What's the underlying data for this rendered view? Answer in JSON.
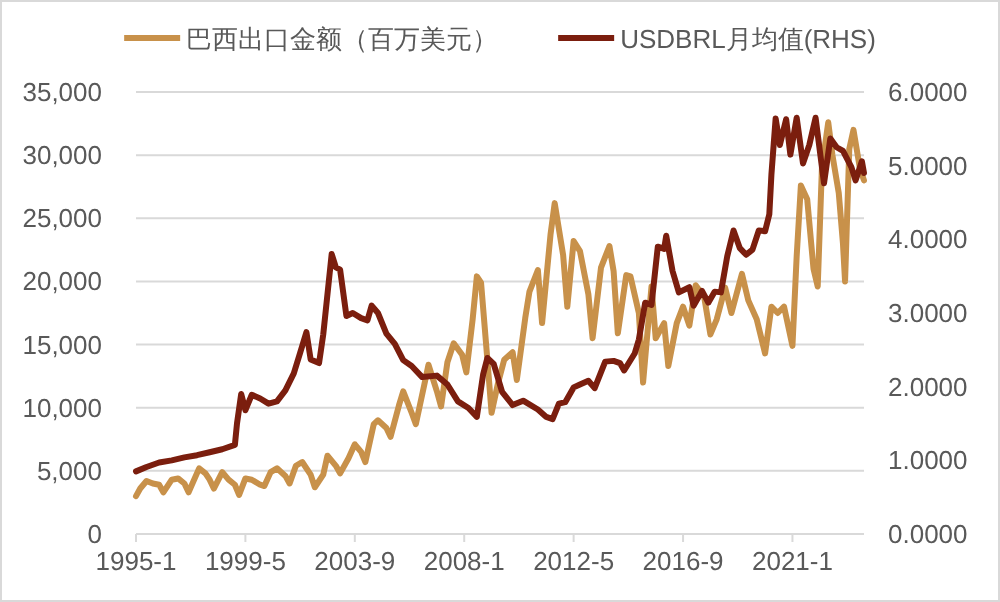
{
  "chart_data": {
    "type": "line",
    "legend": "top",
    "grid": "y",
    "marker": "none",
    "line_style": "solid",
    "xlim": [
      "1995-01",
      "2023-11"
    ],
    "xticks": [
      {
        "value": "1995-01",
        "label": "1995-1"
      },
      {
        "value": "1999-05",
        "label": "1999-5"
      },
      {
        "value": "2003-09",
        "label": "2003-9"
      },
      {
        "value": "2008-01",
        "label": "2008-1"
      },
      {
        "value": "2012-05",
        "label": "2012-5"
      },
      {
        "value": "2016-09",
        "label": "2016-9"
      },
      {
        "value": "2021-01",
        "label": "2021-1"
      }
    ],
    "ylim": [
      0,
      35000
    ],
    "yticks": [
      0,
      {
        "value": 5000,
        "label": "5,000"
      },
      {
        "value": 10000,
        "label": "10,000"
      },
      {
        "value": 15000,
        "label": "15,000"
      },
      {
        "value": 20000,
        "label": "20,000"
      },
      {
        "value": 25000,
        "label": "25,000"
      },
      {
        "value": 30000,
        "label": "30,000"
      },
      {
        "value": 35000,
        "label": "35,000"
      }
    ],
    "y2lim": [
      0,
      6
    ],
    "y2ticks": [
      {
        "value": 0,
        "label": "0.0000"
      },
      {
        "value": 1,
        "label": "1.0000"
      },
      {
        "value": 2,
        "label": "2.0000"
      },
      {
        "value": 3,
        "label": "3.0000"
      },
      {
        "value": 4,
        "label": "4.0000"
      },
      {
        "value": 5,
        "label": "5.0000"
      },
      {
        "value": 6,
        "label": "6.0000"
      }
    ],
    "series": [
      {
        "name": "巴西出口金额（百万美元）",
        "color": "#c8914a",
        "axis": "y",
        "x": [
          "1995-01",
          "1995-03",
          "1995-06",
          "1995-09",
          "1995-12",
          "1996-02",
          "1996-06",
          "1996-09",
          "1996-12",
          "1997-02",
          "1997-07",
          "1997-10",
          "1997-12",
          "1998-02",
          "1998-06",
          "1998-09",
          "1998-12",
          "1999-02",
          "1999-05",
          "1999-08",
          "1999-12",
          "2000-02",
          "2000-05",
          "2000-08",
          "2000-12",
          "2001-02",
          "2001-05",
          "2001-08",
          "2001-12",
          "2002-02",
          "2002-06",
          "2002-08",
          "2002-12",
          "2003-02",
          "2003-06",
          "2003-09",
          "2003-12",
          "2004-02",
          "2004-06",
          "2004-08",
          "2004-12",
          "2005-02",
          "2005-06",
          "2005-08",
          "2005-12",
          "2006-02",
          "2006-06",
          "2006-08",
          "2006-12",
          "2007-02",
          "2007-05",
          "2007-08",
          "2007-12",
          "2008-02",
          "2008-05",
          "2008-07",
          "2008-09",
          "2008-12",
          "2009-02",
          "2009-05",
          "2009-08",
          "2009-12",
          "2010-02",
          "2010-06",
          "2010-08",
          "2010-12",
          "2011-02",
          "2011-06",
          "2011-08",
          "2011-12",
          "2012-02",
          "2012-05",
          "2012-08",
          "2012-12",
          "2013-02",
          "2013-06",
          "2013-10",
          "2013-12",
          "2014-02",
          "2014-06",
          "2014-08",
          "2014-12",
          "2015-02",
          "2015-06",
          "2015-08",
          "2015-12",
          "2016-02",
          "2016-06",
          "2016-09",
          "2016-12",
          "2017-03",
          "2017-07",
          "2017-10",
          "2018-01",
          "2018-05",
          "2018-08",
          "2019-01",
          "2019-04",
          "2019-08",
          "2019-12",
          "2020-03",
          "2020-06",
          "2020-09",
          "2021-01",
          "2021-03",
          "2021-05",
          "2021-08",
          "2021-11",
          "2022-01",
          "2022-03",
          "2022-06",
          "2022-08",
          "2022-11",
          "2023-01",
          "2023-02",
          "2023-04",
          "2023-06",
          "2023-09",
          "2023-11"
        ],
        "values": [
          3000,
          3600,
          4200,
          4000,
          3900,
          3300,
          4300,
          4400,
          4000,
          3300,
          5200,
          4800,
          4300,
          3600,
          4900,
          4300,
          3900,
          3100,
          4400,
          4300,
          3900,
          3800,
          4900,
          5200,
          4600,
          4000,
          5400,
          5700,
          4700,
          3700,
          4700,
          6200,
          5400,
          4800,
          6000,
          7100,
          6500,
          5700,
          8700,
          9000,
          8400,
          7700,
          10200,
          11300,
          9600,
          8700,
          11800,
          13400,
          11300,
          10100,
          13600,
          15100,
          14200,
          12800,
          17000,
          20400,
          19900,
          13800,
          9600,
          11900,
          13800,
          14400,
          12200,
          17100,
          19200,
          20900,
          16700,
          23700,
          26200,
          22100,
          18000,
          23200,
          22400,
          19000,
          15500,
          21100,
          22800,
          20800,
          15900,
          20500,
          20400,
          17500,
          12000,
          19600,
          15500,
          16700,
          13300,
          16700,
          18000,
          16500,
          19700,
          18800,
          15800,
          17000,
          19500,
          17500,
          20600,
          18500,
          17000,
          14300,
          18000,
          17500,
          18000,
          14900,
          22000,
          27600,
          26500,
          21000,
          19600,
          29000,
          32600,
          30000,
          27000,
          23000,
          20000,
          30500,
          32000,
          29000,
          28000
        ]
      },
      {
        "name": "USDBRL月均值(RHS)",
        "color": "#7b1e0e",
        "axis": "y2",
        "x": [
          "1995-01",
          "1995-06",
          "1995-12",
          "1996-06",
          "1996-12",
          "1997-06",
          "1997-12",
          "1998-06",
          "1998-12",
          "1999-01",
          "1999-03",
          "1999-05",
          "1999-08",
          "1999-12",
          "2000-04",
          "2000-08",
          "2000-12",
          "2001-04",
          "2001-07",
          "2001-10",
          "2001-12",
          "2002-04",
          "2002-06",
          "2002-10",
          "2002-12",
          "2003-02",
          "2003-05",
          "2003-08",
          "2003-12",
          "2004-03",
          "2004-05",
          "2004-08",
          "2004-12",
          "2005-04",
          "2005-08",
          "2005-12",
          "2006-05",
          "2006-12",
          "2007-05",
          "2007-10",
          "2008-03",
          "2008-07",
          "2008-10",
          "2008-12",
          "2009-03",
          "2009-07",
          "2009-12",
          "2010-05",
          "2010-12",
          "2011-04",
          "2011-07",
          "2011-10",
          "2012-01",
          "2012-05",
          "2012-08",
          "2012-12",
          "2013-03",
          "2013-08",
          "2013-12",
          "2014-03",
          "2014-05",
          "2014-10",
          "2014-12",
          "2015-03",
          "2015-06",
          "2015-09",
          "2015-12",
          "2016-01",
          "2016-04",
          "2016-07",
          "2016-12",
          "2017-02",
          "2017-06",
          "2017-09",
          "2017-12",
          "2018-03",
          "2018-06",
          "2018-09",
          "2018-12",
          "2019-03",
          "2019-06",
          "2019-09",
          "2019-12",
          "2020-02",
          "2020-03",
          "2020-05",
          "2020-07",
          "2020-10",
          "2020-12",
          "2021-03",
          "2021-06",
          "2021-09",
          "2021-12",
          "2022-04",
          "2022-07",
          "2022-10",
          "2023-01",
          "2023-05",
          "2023-07",
          "2023-10",
          "2023-11"
        ],
        "values": [
          0.85,
          0.91,
          0.97,
          1.0,
          1.04,
          1.07,
          1.11,
          1.15,
          1.21,
          1.5,
          1.9,
          1.68,
          1.89,
          1.84,
          1.77,
          1.8,
          1.95,
          2.18,
          2.46,
          2.74,
          2.37,
          2.32,
          2.71,
          3.8,
          3.62,
          3.59,
          2.96,
          3.0,
          2.93,
          2.9,
          3.1,
          3.0,
          2.72,
          2.58,
          2.36,
          2.28,
          2.13,
          2.15,
          2.03,
          1.8,
          1.71,
          1.59,
          2.17,
          2.39,
          2.31,
          1.93,
          1.75,
          1.81,
          1.69,
          1.59,
          1.56,
          1.77,
          1.79,
          1.99,
          2.03,
          2.08,
          1.98,
          2.34,
          2.35,
          2.32,
          2.22,
          2.45,
          2.64,
          3.14,
          3.11,
          3.9,
          3.87,
          4.05,
          3.57,
          3.28,
          3.35,
          3.1,
          3.3,
          3.14,
          3.29,
          3.28,
          3.77,
          4.12,
          3.88,
          3.79,
          3.86,
          4.12,
          4.11,
          4.34,
          4.88,
          5.64,
          5.28,
          5.63,
          5.15,
          5.65,
          5.03,
          5.28,
          5.65,
          4.76,
          5.37,
          5.25,
          5.2,
          4.98,
          4.8,
          5.06,
          4.9
        ]
      }
    ]
  }
}
